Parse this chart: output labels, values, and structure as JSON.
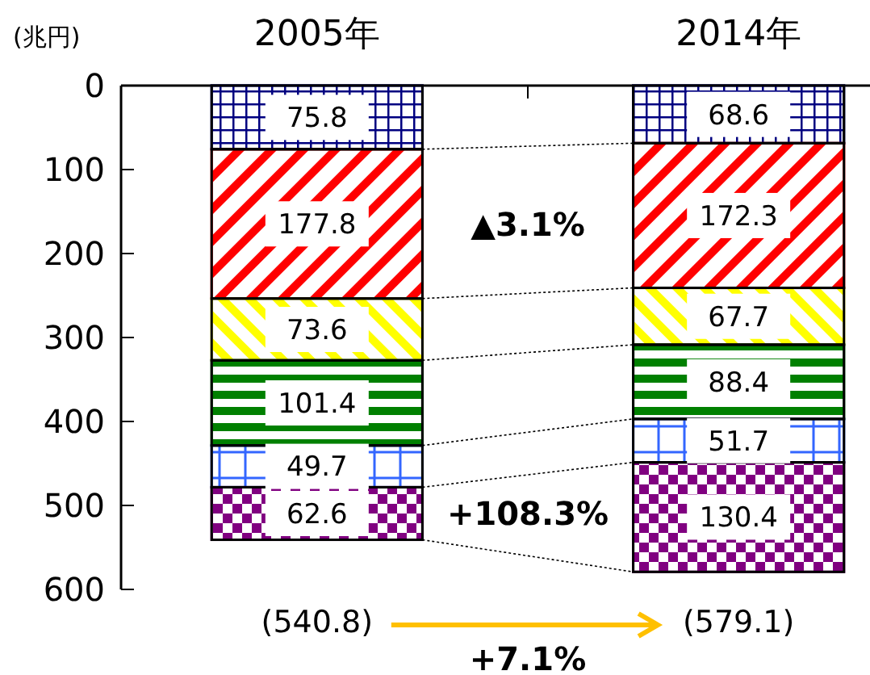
{
  "chart_data": {
    "type": "bar",
    "stacked": true,
    "ylabel": "(兆円)",
    "categories": [
      "2005年",
      "2014年"
    ],
    "ylim": [
      600,
      0
    ],
    "yticks": [
      0,
      100,
      200,
      300,
      400,
      500,
      600
    ],
    "data_labels": true,
    "totals": [
      "(540.8)",
      "(579.1)"
    ],
    "series": [
      {
        "color": "#000080",
        "values": [
          75.8,
          68.6
        ]
      },
      {
        "color": "#ff0000",
        "values": [
          177.8,
          172.3
        ]
      },
      {
        "color": "#ffff00",
        "values": [
          73.6,
          67.7
        ]
      },
      {
        "color": "#008000",
        "values": [
          101.4,
          88.4
        ]
      },
      {
        "color": "#3366ff",
        "values": [
          49.7,
          51.7
        ]
      },
      {
        "color": "#800080",
        "values": [
          62.6,
          130.4
        ]
      }
    ],
    "annotations": [
      "▲3.1%",
      "+108.3%",
      "+7.1%"
    ]
  }
}
